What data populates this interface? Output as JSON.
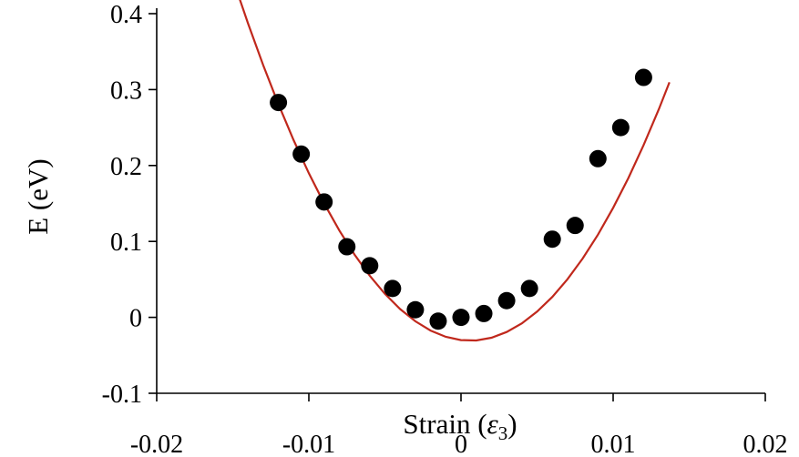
{
  "chart_data": {
    "type": "scatter",
    "xlabel": "Strain (",
    "xlabel_symbol": "ε",
    "xlabel_subscript": "3",
    "xlabel_close": ")",
    "ylabel": "E (eV)",
    "xlim": [
      -0.02,
      0.02
    ],
    "ylim": [
      -0.1,
      0.4
    ],
    "xticks": [
      -0.02,
      -0.01,
      0,
      0.01,
      0.02
    ],
    "xtick_labels": [
      "-0.02",
      "-0.01",
      "0",
      "0.01",
      "0.02"
    ],
    "yticks": [
      -0.1,
      0,
      0.1,
      0.2,
      0.3,
      0.4
    ],
    "ytick_labels": [
      "-0.1",
      "0",
      "0.1",
      "0.2",
      "0.3",
      "0.4"
    ],
    "grid": false,
    "legend": "none",
    "series": [
      {
        "kind": "points",
        "color": "#000000",
        "x": [
          -0.012,
          -0.0105,
          -0.009,
          -0.0075,
          -0.006,
          -0.0045,
          -0.003,
          -0.0015,
          0,
          0.0015,
          0.003,
          0.0045,
          0.006,
          0.0075,
          0.009,
          0.0105,
          0.012
        ],
        "y": [
          0.283,
          0.215,
          0.152,
          0.093,
          0.068,
          0.038,
          0.01,
          -0.005,
          0,
          0.005,
          0.022,
          0.038,
          0.103,
          0.121,
          0.209,
          0.25,
          0.316
        ]
      },
      {
        "kind": "fit",
        "color": "#c0281c",
        "x": [
          -0.01455,
          -0.014,
          -0.013,
          -0.012,
          -0.011,
          -0.01,
          -0.009,
          -0.008,
          -0.007,
          -0.006,
          -0.005,
          -0.004,
          -0.003,
          -0.002,
          -0.001,
          0,
          0.001,
          0.002,
          0.003,
          0.004,
          0.005,
          0.006,
          0.007,
          0.008,
          0.009,
          0.01,
          0.011,
          0.012,
          0.013,
          0.0137
        ],
        "y": [
          0.4195,
          0.3873,
          0.3321,
          0.2808,
          0.2333,
          0.1898,
          0.1502,
          0.1145,
          0.0827,
          0.0549,
          0.0309,
          0.0109,
          -0.0052,
          -0.0174,
          -0.0256,
          -0.03,
          -0.0304,
          -0.0268,
          -0.0193,
          -0.0079,
          0.0075,
          0.0269,
          0.0502,
          0.0776,
          0.1089,
          0.1442,
          0.1835,
          0.2268,
          0.274,
          0.3096
        ]
      }
    ]
  }
}
